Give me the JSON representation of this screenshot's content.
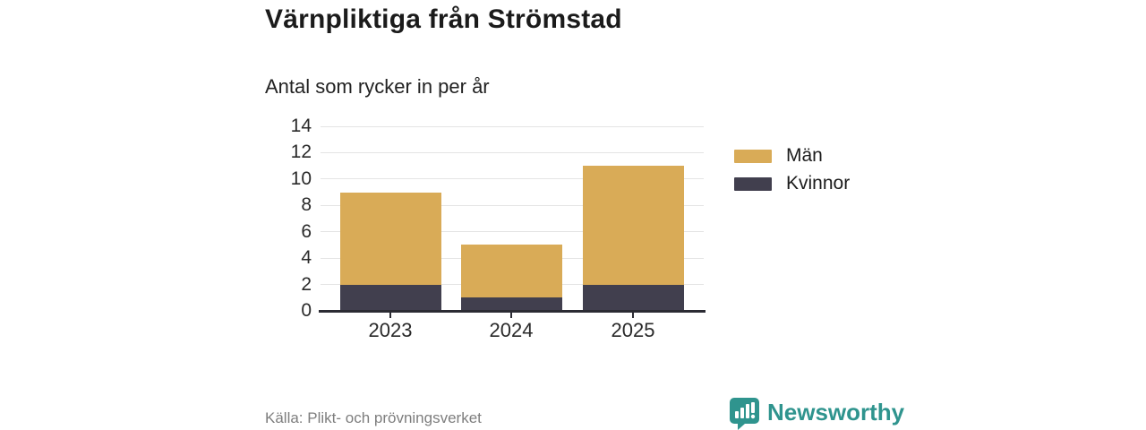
{
  "header": {
    "title": "Värnpliktiga från Strömstad",
    "subtitle": "Antal som rycker in per år"
  },
  "chart_data": {
    "type": "bar",
    "stacked": true,
    "title": "Värnpliktiga från Strömstad",
    "subtitle": "Antal som rycker in per år",
    "categories": [
      "2023",
      "2024",
      "2025"
    ],
    "series": [
      {
        "name": "Kvinnor",
        "color": "#413F4E",
        "values": [
          2,
          1,
          2
        ]
      },
      {
        "name": "Män",
        "color": "#D9AB57",
        "values": [
          7,
          4,
          9
        ]
      }
    ],
    "totals": [
      9,
      5,
      11
    ],
    "yticks": [
      0,
      2,
      4,
      6,
      8,
      10,
      12,
      14
    ],
    "ylim": [
      0,
      14
    ],
    "grid": true,
    "legend_position": "right",
    "legend": [
      {
        "label": "Män",
        "color": "#D9AB57"
      },
      {
        "label": "Kvinnor",
        "color": "#413F4E"
      }
    ]
  },
  "footer": {
    "source": "Källa: Plikt- och prövningsverket",
    "brand": "Newsworthy"
  },
  "icons": {
    "brand_logo": "newsworthy-speech-bubble-barchart-icon"
  },
  "colors": {
    "men": "#D9AB57",
    "women": "#413F4E",
    "teal": "#2F948E",
    "grid": "#E4E4E4",
    "axis": "#2B2B33",
    "title_text": "#1B1B1B",
    "muted_text": "#7E7E7E"
  }
}
